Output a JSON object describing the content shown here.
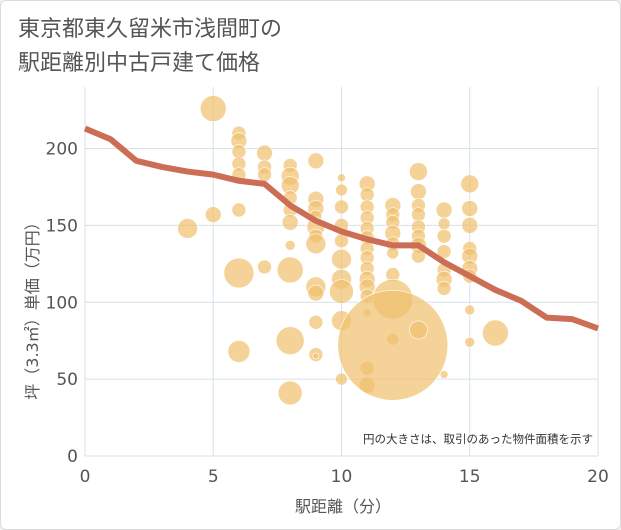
{
  "title_lines": [
    "東京都東久留米市浅間町の",
    "駅距離別中古戸建て価格"
  ],
  "colors": {
    "bubble": "#f0c070",
    "line": "#cc6e55",
    "grid": "#d6e1ea"
  },
  "chart_data": {
    "type": "scatter",
    "xlabel": "駅距離（分）",
    "ylabel": "坪（3.3㎡）単価（万円）",
    "xlim": [
      0,
      20
    ],
    "ylim": [
      0,
      240
    ],
    "xticks": [
      0,
      5,
      10,
      15,
      20
    ],
    "yticks": [
      0,
      50,
      100,
      150,
      200
    ],
    "grid": true,
    "annotation": "円の大きさは、取引のあった物件面積を示す",
    "points": [
      {
        "x": 5,
        "y": 226,
        "size": 13
      },
      {
        "x": 4,
        "y": 148,
        "size": 10
      },
      {
        "x": 5,
        "y": 157,
        "size": 8
      },
      {
        "x": 6,
        "y": 210,
        "size": 7
      },
      {
        "x": 6,
        "y": 205,
        "size": 8
      },
      {
        "x": 6,
        "y": 198,
        "size": 7
      },
      {
        "x": 6,
        "y": 190,
        "size": 7
      },
      {
        "x": 6,
        "y": 183,
        "size": 7
      },
      {
        "x": 6,
        "y": 160,
        "size": 7
      },
      {
        "x": 6,
        "y": 119,
        "size": 15
      },
      {
        "x": 6,
        "y": 68,
        "size": 11
      },
      {
        "x": 7,
        "y": 197,
        "size": 8
      },
      {
        "x": 7,
        "y": 188,
        "size": 7
      },
      {
        "x": 7,
        "y": 183,
        "size": 7
      },
      {
        "x": 7,
        "y": 123,
        "size": 7
      },
      {
        "x": 8,
        "y": 189,
        "size": 7
      },
      {
        "x": 8,
        "y": 182,
        "size": 9
      },
      {
        "x": 8,
        "y": 176,
        "size": 9
      },
      {
        "x": 8,
        "y": 168,
        "size": 7
      },
      {
        "x": 8,
        "y": 160,
        "size": 7
      },
      {
        "x": 8,
        "y": 152,
        "size": 8
      },
      {
        "x": 8,
        "y": 137,
        "size": 5
      },
      {
        "x": 8,
        "y": 121,
        "size": 13
      },
      {
        "x": 8,
        "y": 75,
        "size": 14
      },
      {
        "x": 8,
        "y": 41,
        "size": 12
      },
      {
        "x": 9,
        "y": 192,
        "size": 8
      },
      {
        "x": 9,
        "y": 167,
        "size": 8
      },
      {
        "x": 9,
        "y": 161,
        "size": 8
      },
      {
        "x": 9,
        "y": 156,
        "size": 6
      },
      {
        "x": 9,
        "y": 149,
        "size": 9
      },
      {
        "x": 9,
        "y": 143,
        "size": 7
      },
      {
        "x": 9,
        "y": 138,
        "size": 10
      },
      {
        "x": 9,
        "y": 110,
        "size": 10
      },
      {
        "x": 9,
        "y": 106,
        "size": 8
      },
      {
        "x": 9,
        "y": 87,
        "size": 7
      },
      {
        "x": 9,
        "y": 66,
        "size": 7
      },
      {
        "x": 9,
        "y": 65,
        "size": 3
      },
      {
        "x": 10,
        "y": 181,
        "size": 4
      },
      {
        "x": 10,
        "y": 173,
        "size": 6
      },
      {
        "x": 10,
        "y": 162,
        "size": 7
      },
      {
        "x": 10,
        "y": 150,
        "size": 7
      },
      {
        "x": 10,
        "y": 140,
        "size": 7
      },
      {
        "x": 10,
        "y": 128,
        "size": 10
      },
      {
        "x": 10,
        "y": 115,
        "size": 10
      },
      {
        "x": 10,
        "y": 107,
        "size": 12
      },
      {
        "x": 10,
        "y": 88,
        "size": 10
      },
      {
        "x": 10,
        "y": 50,
        "size": 6
      },
      {
        "x": 11,
        "y": 177,
        "size": 8
      },
      {
        "x": 11,
        "y": 170,
        "size": 7
      },
      {
        "x": 11,
        "y": 162,
        "size": 7
      },
      {
        "x": 11,
        "y": 155,
        "size": 7
      },
      {
        "x": 11,
        "y": 148,
        "size": 7
      },
      {
        "x": 11,
        "y": 142,
        "size": 7
      },
      {
        "x": 11,
        "y": 135,
        "size": 7
      },
      {
        "x": 11,
        "y": 129,
        "size": 7
      },
      {
        "x": 11,
        "y": 122,
        "size": 7
      },
      {
        "x": 11,
        "y": 115,
        "size": 8
      },
      {
        "x": 11,
        "y": 110,
        "size": 8
      },
      {
        "x": 11,
        "y": 104,
        "size": 7
      },
      {
        "x": 11,
        "y": 93,
        "size": 4
      },
      {
        "x": 11,
        "y": 57,
        "size": 7
      },
      {
        "x": 11,
        "y": 46,
        "size": 8
      },
      {
        "x": 12,
        "y": 163,
        "size": 8
      },
      {
        "x": 12,
        "y": 157,
        "size": 7
      },
      {
        "x": 12,
        "y": 152,
        "size": 7
      },
      {
        "x": 12,
        "y": 145,
        "size": 8
      },
      {
        "x": 12,
        "y": 138,
        "size": 7
      },
      {
        "x": 12,
        "y": 132,
        "size": 6
      },
      {
        "x": 12,
        "y": 118,
        "size": 7
      },
      {
        "x": 12,
        "y": 102,
        "size": 20
      },
      {
        "x": 12,
        "y": 76,
        "size": 6
      },
      {
        "x": 12,
        "y": 72,
        "size": 55
      },
      {
        "x": 13,
        "y": 185,
        "size": 9
      },
      {
        "x": 13,
        "y": 172,
        "size": 8
      },
      {
        "x": 13,
        "y": 163,
        "size": 7
      },
      {
        "x": 13,
        "y": 157,
        "size": 7
      },
      {
        "x": 13,
        "y": 149,
        "size": 7
      },
      {
        "x": 13,
        "y": 143,
        "size": 7
      },
      {
        "x": 13,
        "y": 137,
        "size": 8
      },
      {
        "x": 13,
        "y": 130,
        "size": 7
      },
      {
        "x": 13,
        "y": 82,
        "size": 9
      },
      {
        "x": 14,
        "y": 160,
        "size": 8
      },
      {
        "x": 14,
        "y": 151,
        "size": 6
      },
      {
        "x": 14,
        "y": 143,
        "size": 7
      },
      {
        "x": 14,
        "y": 133,
        "size": 7
      },
      {
        "x": 14,
        "y": 121,
        "size": 7
      },
      {
        "x": 14,
        "y": 115,
        "size": 8
      },
      {
        "x": 14,
        "y": 109,
        "size": 7
      },
      {
        "x": 14,
        "y": 53,
        "size": 4
      },
      {
        "x": 15,
        "y": 177,
        "size": 9
      },
      {
        "x": 15,
        "y": 161,
        "size": 8
      },
      {
        "x": 15,
        "y": 150,
        "size": 8
      },
      {
        "x": 15,
        "y": 135,
        "size": 7
      },
      {
        "x": 15,
        "y": 130,
        "size": 8
      },
      {
        "x": 15,
        "y": 122,
        "size": 8
      },
      {
        "x": 15,
        "y": 117,
        "size": 7
      },
      {
        "x": 15,
        "y": 95,
        "size": 5
      },
      {
        "x": 15,
        "y": 74,
        "size": 5
      },
      {
        "x": 16,
        "y": 80,
        "size": 13
      }
    ],
    "trend": {
      "x": [
        0,
        1,
        2,
        3,
        4,
        5,
        6,
        7,
        8,
        9,
        10,
        11,
        12,
        13,
        14,
        15,
        16,
        17,
        18,
        19,
        20
      ],
      "y": [
        213,
        206,
        192,
        188,
        185,
        183,
        179,
        177,
        163,
        153,
        146,
        141,
        137,
        137,
        126,
        117,
        108,
        101,
        90,
        89,
        83
      ]
    }
  }
}
